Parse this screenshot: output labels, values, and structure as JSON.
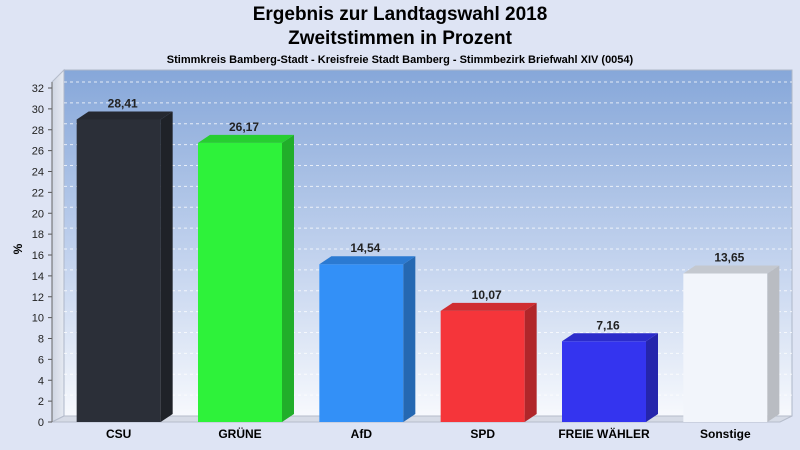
{
  "chart_data": {
    "type": "bar",
    "title": "Ergebnis zur Landtagswahl 2018",
    "subtitle": "Zweitstimmen in Prozent",
    "subsubtitle": "Stimmkreis Bamberg-Stadt - Kreisfreie Stadt Bamberg - Stimmbezirk Briefwahl XIV (0054)",
    "ylabel": "%",
    "xlabel": "",
    "ylim": [
      0,
      32
    ],
    "yticks": [
      0,
      2,
      4,
      6,
      8,
      10,
      12,
      14,
      16,
      18,
      20,
      22,
      24,
      26,
      28,
      30,
      32
    ],
    "grid": true,
    "categories": [
      "CSU",
      "GRÜNE",
      "AfD",
      "SPD",
      "FREIE WÄHLER",
      "Sonstige"
    ],
    "values": [
      28.41,
      26.17,
      14.54,
      10.07,
      7.16,
      13.65
    ],
    "value_labels": [
      "28,41",
      "26,17",
      "14,54",
      "10,07",
      "7,16",
      "13,65"
    ],
    "colors": [
      "#2b2f38",
      "#2ef23a",
      "#3390f7",
      "#f5353a",
      "#3434ef",
      "#f2f5fb"
    ]
  }
}
